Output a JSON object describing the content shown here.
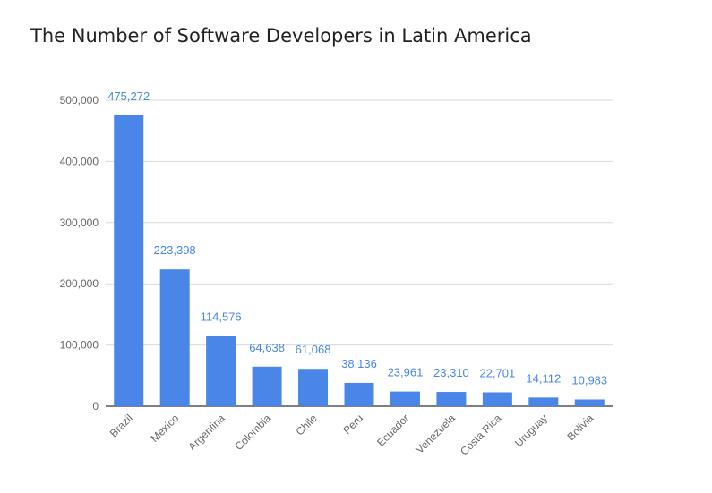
{
  "chart_data": {
    "type": "bar",
    "title": "The Number of Software Developers in Latin America",
    "categories": [
      "Brazil",
      "Mexico",
      "Argentina",
      "Colombia",
      "Chile",
      "Peru",
      "Ecuador",
      "Venezuela",
      "Costa Rica",
      "Uruguay",
      "Bolivia"
    ],
    "values": [
      475272,
      223398,
      114576,
      64638,
      61068,
      38136,
      23961,
      23310,
      22701,
      14112,
      10983
    ],
    "value_labels": [
      "475,272",
      "223,398",
      "114,576",
      "64,638",
      "61,068",
      "38,136",
      "23,961",
      "23,310",
      "22,701",
      "14,112",
      "10,983"
    ],
    "y_ticks": [
      0,
      100000,
      200000,
      300000,
      400000,
      500000
    ],
    "y_tick_labels": [
      "0",
      "100,000",
      "200,000",
      "300,000",
      "400,000",
      "500,000"
    ],
    "ylim": [
      0,
      500000
    ],
    "xlabel": "",
    "ylabel": "",
    "grid": true,
    "bar_color": "#4a86e8",
    "label_color": "#4a86e8"
  }
}
